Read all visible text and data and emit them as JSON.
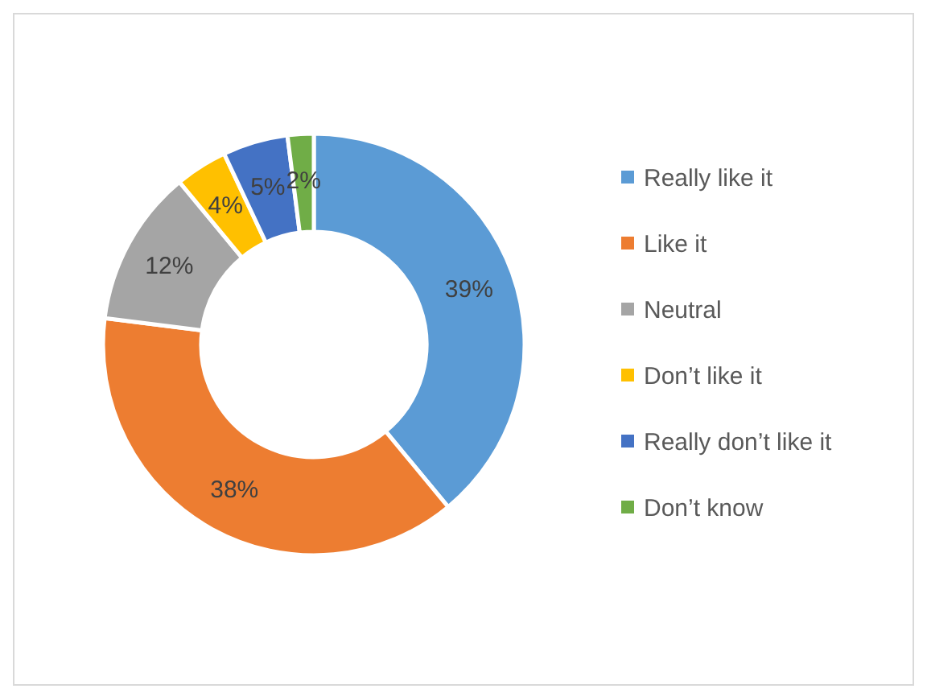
{
  "chart_data": {
    "type": "donut",
    "categories": [
      "Really like it",
      "Like it",
      "Neutral",
      "Don’t like it",
      "Really don’t like it",
      "Don’t know"
    ],
    "values": [
      39,
      38,
      12,
      4,
      5,
      2
    ],
    "value_labels": [
      "39%",
      "38%",
      "12%",
      "4%",
      "5%",
      "2%"
    ],
    "colors": [
      "#5b9bd5",
      "#ed7d31",
      "#a5a5a5",
      "#ffc000",
      "#4472c4",
      "#70ad47"
    ],
    "legend": "right"
  }
}
